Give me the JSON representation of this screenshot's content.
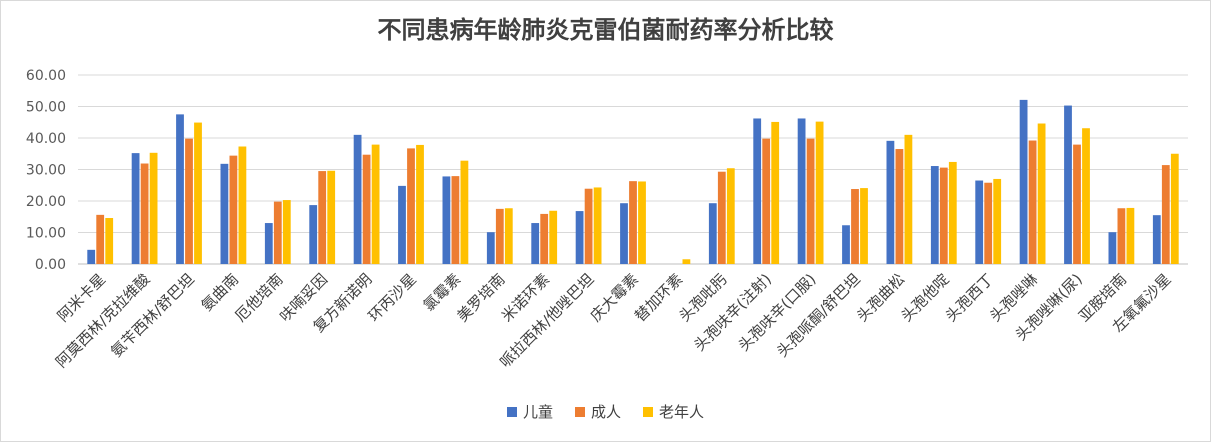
{
  "chart_data": {
    "type": "bar",
    "title": "不同患病年龄肺炎克雷伯菌耐药率分析比较",
    "xlabel": "",
    "ylabel": "",
    "ylim": [
      0,
      60
    ],
    "yticks": [
      "0.00",
      "10.00",
      "20.00",
      "30.00",
      "40.00",
      "50.00",
      "60.00"
    ],
    "grid": true,
    "legend_position": "bottom",
    "categories": [
      "阿米卡星",
      "阿莫西林/克拉维酸",
      "氨苄西林/舒巴坦",
      "氨曲南",
      "厄他培南",
      "呋喃妥因",
      "复方新诺明",
      "环丙沙星",
      "氯霉素",
      "美罗培南",
      "米诺环素",
      "哌拉西林/他唑巴坦",
      "庆大霉素",
      "替加环素",
      "头孢吡肟",
      "头孢呋辛(注射)",
      "头孢呋辛(口服)",
      "头孢哌酮/舒巴坦",
      "头孢曲松",
      "头孢他啶",
      "头孢西丁",
      "头孢唑啉",
      "头孢唑啉(尿)",
      "亚胺培南",
      "左氧氟沙星"
    ],
    "series": [
      {
        "name": "儿童",
        "color": "#4472c4",
        "values": [
          4.5,
          35.2,
          47.5,
          31.8,
          13.0,
          18.7,
          41.0,
          24.8,
          27.8,
          10.1,
          13.0,
          16.8,
          19.3,
          0,
          19.3,
          46.2,
          46.2,
          12.3,
          39.1,
          31.1,
          26.5,
          52.1,
          50.3,
          10.1,
          15.5
        ]
      },
      {
        "name": "成人",
        "color": "#ed7d31",
        "values": [
          15.6,
          31.9,
          39.8,
          34.4,
          19.8,
          29.5,
          34.7,
          36.7,
          27.9,
          17.5,
          15.9,
          23.9,
          26.3,
          0,
          29.3,
          39.8,
          39.8,
          23.8,
          36.5,
          30.6,
          25.8,
          39.2,
          37.9,
          17.7,
          31.4
        ]
      },
      {
        "name": "老年人",
        "color": "#ffc000",
        "values": [
          14.6,
          35.3,
          44.9,
          37.3,
          20.3,
          29.6,
          37.9,
          37.8,
          32.8,
          17.7,
          16.9,
          24.3,
          26.2,
          1.5,
          30.4,
          45.1,
          45.2,
          24.1,
          41.0,
          32.4,
          27.0,
          44.6,
          43.1,
          17.8,
          35.0
        ]
      }
    ]
  }
}
